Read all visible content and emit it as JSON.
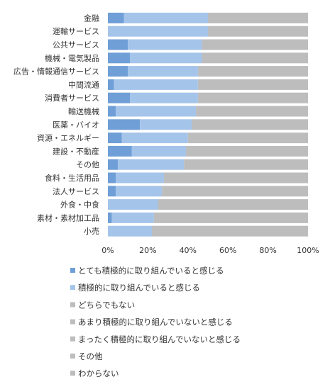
{
  "chart_data": {
    "type": "bar",
    "orientation": "horizontal",
    "stacked": "percent",
    "categories": [
      "金融",
      "運輸サービス",
      "公共サービス",
      "機械・電気製品",
      "広告・情報通信サービス",
      "中間流通",
      "消費者サービス",
      "輸送機械",
      "医薬・バイオ",
      "資源・エネルギー",
      "建設・不動産",
      "その他",
      "食料・生活用品",
      "法人サービス",
      "外食・中食",
      "素材・素材加工品",
      "小売"
    ],
    "series": [
      {
        "name": "とても積極的に取り組んでいると感じる",
        "color": "#6f9fd6",
        "values": [
          8,
          0,
          10,
          11,
          10,
          3,
          11,
          4,
          16,
          7,
          12,
          5,
          4,
          4,
          0,
          2,
          0
        ]
      },
      {
        "name": "積極的に取り組んでいると感じる",
        "color": "#a5c4ea",
        "values": [
          42,
          50,
          37,
          36,
          35,
          42,
          34,
          40,
          26,
          33,
          27,
          33,
          24,
          23,
          25,
          21,
          22
        ]
      },
      {
        "name": "どちらでもない",
        "color": "#bdbdbd",
        "values": [
          50,
          50,
          53,
          53,
          55,
          55,
          55,
          56,
          58,
          60,
          61,
          62,
          72,
          73,
          75,
          77,
          78
        ]
      },
      {
        "name": "あまり積極的に取り組んでいないと感じる",
        "color": "#bdbdbd",
        "values": [
          0,
          0,
          0,
          0,
          0,
          0,
          0,
          0,
          0,
          0,
          0,
          0,
          0,
          0,
          0,
          0,
          0
        ]
      },
      {
        "name": "まったく積極的に取り組んでいないと感じる",
        "color": "#bdbdbd",
        "values": [
          0,
          0,
          0,
          0,
          0,
          0,
          0,
          0,
          0,
          0,
          0,
          0,
          0,
          0,
          0,
          0,
          0
        ]
      },
      {
        "name": "その他",
        "color": "#bdbdbd",
        "values": [
          0,
          0,
          0,
          0,
          0,
          0,
          0,
          0,
          0,
          0,
          0,
          0,
          0,
          0,
          0,
          0,
          0
        ]
      },
      {
        "name": "わからない",
        "color": "#bdbdbd",
        "values": [
          0,
          0,
          0,
          0,
          0,
          0,
          0,
          0,
          0,
          0,
          0,
          0,
          0,
          0,
          0,
          0,
          0
        ]
      }
    ],
    "xticks": [
      "0%",
      "20%",
      "40%",
      "60%",
      "80%",
      "100%"
    ],
    "xlim": [
      0,
      100
    ],
    "grid": false,
    "legend_placement": "bottom",
    "title": "",
    "xlabel": "",
    "ylabel": ""
  }
}
